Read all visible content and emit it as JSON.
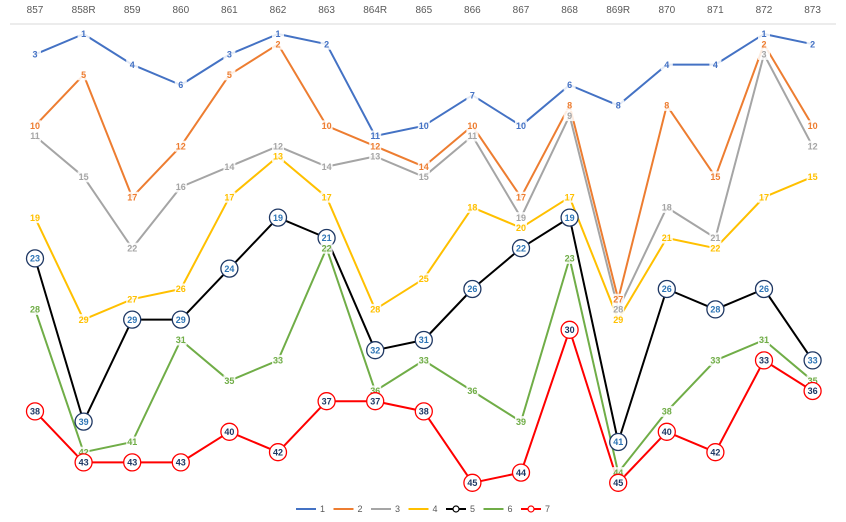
{
  "chart_data": {
    "type": "line",
    "title": "",
    "xlabel": "",
    "ylabel": "",
    "y_inverted": true,
    "categories": [
      "857",
      "858R",
      "859",
      "860",
      "861",
      "862",
      "863",
      "864R",
      "865",
      "866",
      "867",
      "868",
      "869R",
      "870",
      "871",
      "872",
      "873"
    ],
    "series": [
      {
        "name": "1",
        "color": "#4472c4",
        "style": "plain",
        "values": [
          3,
          1,
          4,
          6,
          3,
          1,
          2,
          11,
          10,
          7,
          10,
          6,
          8,
          4,
          4,
          1,
          2
        ]
      },
      {
        "name": "2",
        "color": "#ed7d31",
        "style": "plain",
        "values": [
          10,
          5,
          17,
          12,
          5,
          2,
          10,
          12,
          14,
          10,
          17,
          8,
          27,
          8,
          15,
          2,
          10
        ]
      },
      {
        "name": "3",
        "color": "#a5a5a5",
        "style": "plain",
        "values": [
          11,
          15,
          22,
          16,
          14,
          12,
          14,
          13,
          15,
          11,
          19,
          9,
          28,
          18,
          21,
          3,
          12
        ]
      },
      {
        "name": "4",
        "color": "#ffc000",
        "style": "plain",
        "values": [
          19,
          29,
          27,
          26,
          17,
          13,
          17,
          28,
          25,
          18,
          20,
          17,
          29,
          21,
          22,
          17,
          15
        ]
      },
      {
        "name": "5",
        "color": "#000000",
        "style": "circle",
        "values": [
          23,
          39,
          29,
          29,
          24,
          19,
          21,
          32,
          31,
          26,
          22,
          19,
          41,
          26,
          28,
          26,
          33
        ]
      },
      {
        "name": "6",
        "color": "#70ad47",
        "style": "plain",
        "values": [
          28,
          42,
          41,
          31,
          35,
          33,
          22,
          36,
          33,
          36,
          39,
          23,
          44,
          38,
          33,
          31,
          35
        ]
      },
      {
        "name": "7",
        "color": "#ff0000",
        "style": "circle",
        "values": [
          38,
          43,
          43,
          43,
          40,
          42,
          37,
          37,
          38,
          45,
          44,
          30,
          45,
          40,
          42,
          33,
          36
        ]
      }
    ],
    "legend_position": "bottom"
  }
}
